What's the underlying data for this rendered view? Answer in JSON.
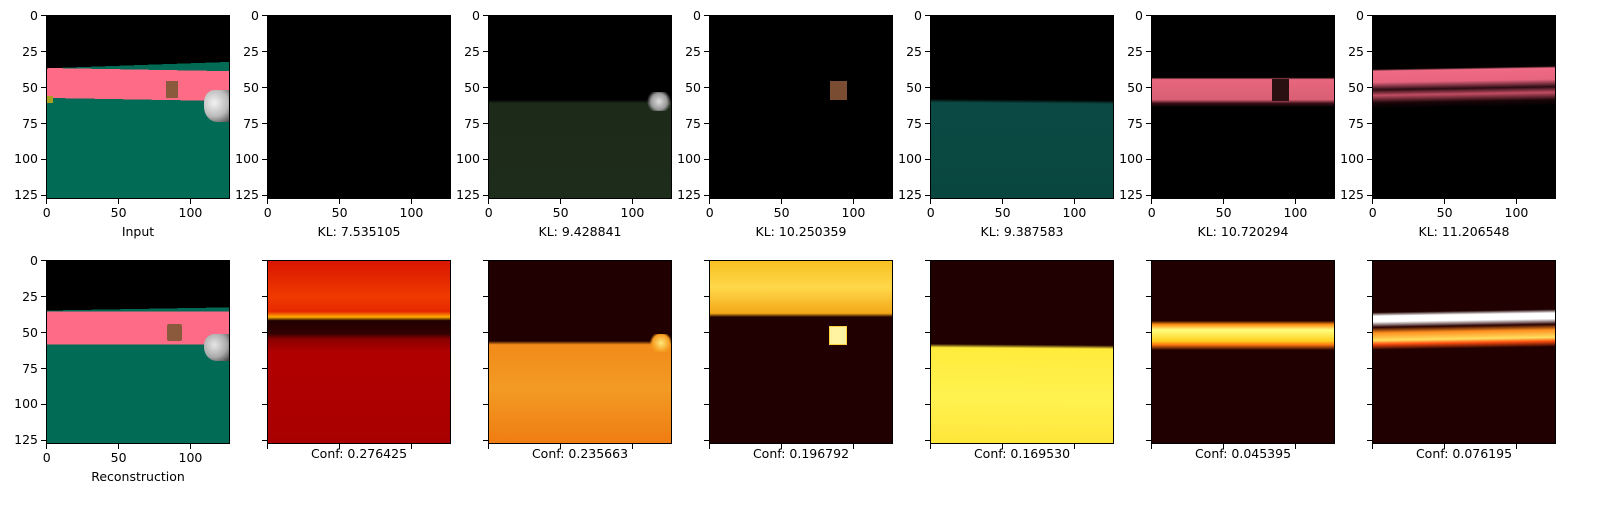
{
  "figure": {
    "panels": [
      {
        "row": 0,
        "col": 0,
        "caption": "Input",
        "show_axes": true,
        "content": "input-scene"
      },
      {
        "row": 0,
        "col": 1,
        "caption": "KL: 7.535105",
        "show_axes": true,
        "content": "slot-dark-1"
      },
      {
        "row": 0,
        "col": 2,
        "caption": "KL: 9.428841",
        "show_axes": true,
        "content": "slot-floor-dark"
      },
      {
        "row": 0,
        "col": 3,
        "caption": "KL: 10.250359",
        "show_axes": true,
        "content": "slot-object"
      },
      {
        "row": 0,
        "col": 4,
        "caption": "KL: 9.387583",
        "show_axes": true,
        "content": "slot-floor-teal"
      },
      {
        "row": 0,
        "col": 5,
        "caption": "KL: 10.720294",
        "show_axes": true,
        "content": "slot-wall-1"
      },
      {
        "row": 0,
        "col": 6,
        "caption": "KL: 11.206548",
        "show_axes": true,
        "content": "slot-wall-2"
      },
      {
        "row": 1,
        "col": 0,
        "caption": "Reconstruction",
        "show_axes": true,
        "content": "recon-scene"
      },
      {
        "row": 1,
        "col": 1,
        "caption": "Conf: 0.276425",
        "show_axes": false,
        "content": "conf-1"
      },
      {
        "row": 1,
        "col": 2,
        "caption": "Conf: 0.235663",
        "show_axes": false,
        "content": "conf-2"
      },
      {
        "row": 1,
        "col": 3,
        "caption": "Conf: 0.196792",
        "show_axes": false,
        "content": "conf-3"
      },
      {
        "row": 1,
        "col": 4,
        "caption": "Conf: 0.169530",
        "show_axes": false,
        "content": "conf-4"
      },
      {
        "row": 1,
        "col": 5,
        "caption": "Conf: 0.045395",
        "show_axes": false,
        "content": "conf-5"
      },
      {
        "row": 1,
        "col": 6,
        "caption": "Conf: 0.076195",
        "show_axes": false,
        "content": "conf-6"
      }
    ],
    "x_ticks": [
      "0",
      "50",
      "100"
    ],
    "y_ticks": [
      "0",
      "25",
      "50",
      "75",
      "100",
      "125"
    ],
    "axis_range": [
      0,
      127
    ],
    "colors": {
      "wall_pink": "#fd6b86",
      "floor_green": "#016b55",
      "object_brown": "#8b5a3c",
      "sky_black": "#000000",
      "heat_dark": "#200000",
      "heat_red": "#b00000",
      "heat_orange": "#f08a10",
      "heat_yellow": "#fff040",
      "heat_white": "#ffffff"
    }
  }
}
